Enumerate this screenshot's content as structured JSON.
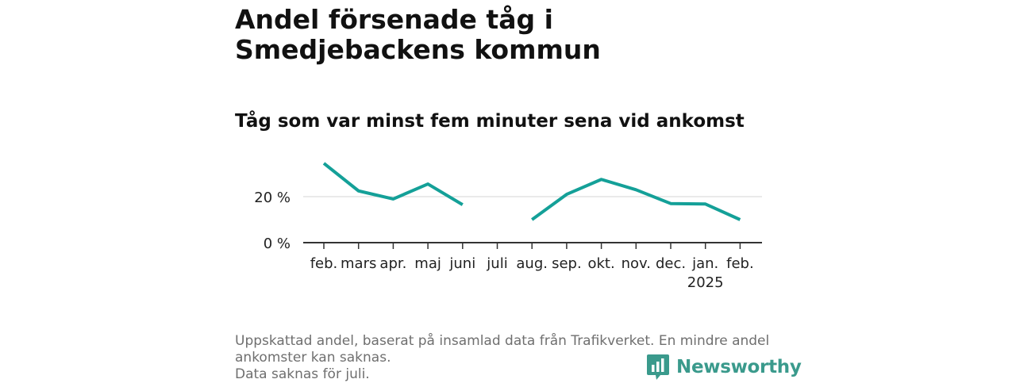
{
  "title": "Andel försenade tåg i Smedjebackens kommun",
  "subtitle": "Tåg som var minst fem minuter sena vid ankomst",
  "footer": {
    "note": "Uppskattad andel, baserat på insamlad data från Trafikverket. En mindre andel ankomster kan saknas.",
    "missing": "Data saknas för juli."
  },
  "brand": {
    "name": "Newsworthy",
    "icon": "newsworthy-logo-icon",
    "color": "#3a9a8c"
  },
  "colors": {
    "line": "#14a098",
    "grid": "#dddddd",
    "axis": "#333333"
  },
  "chart_data": {
    "type": "line",
    "categories": [
      "feb.",
      "mars",
      "apr.",
      "maj",
      "juni",
      "juli",
      "aug.",
      "sep.",
      "okt.",
      "nov.",
      "dec.",
      "jan.",
      "feb."
    ],
    "year_labels": {
      "11": "2025"
    },
    "series": [
      {
        "values": [
          34.5,
          22.5,
          19,
          25.5,
          16.5,
          null,
          10,
          21,
          27.5,
          23,
          17,
          16.8,
          10
        ]
      }
    ],
    "y_ticks": [
      0,
      20
    ],
    "y_tick_labels": [
      "0 %",
      "20 %"
    ],
    "ylim": [
      0,
      40
    ],
    "grid": true
  }
}
